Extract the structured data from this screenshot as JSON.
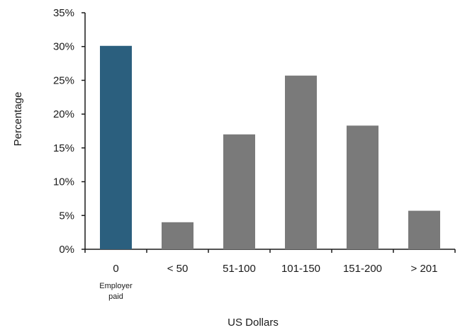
{
  "chart_data": {
    "type": "bar",
    "title": "",
    "xlabel": "US Dollars",
    "ylabel": "Percentage",
    "ylim": [
      0,
      35
    ],
    "yticks": [
      "0%",
      "5%",
      "10%",
      "15%",
      "20%",
      "25%",
      "30%",
      "35%"
    ],
    "ytick_values": [
      0,
      5,
      10,
      15,
      20,
      25,
      30,
      35
    ],
    "categories": [
      "0",
      "< 50",
      "51-100",
      "101-150",
      "151-200",
      "> 201"
    ],
    "category_sublabels": [
      "Employer\npaid",
      "",
      "",
      "",
      "",
      ""
    ],
    "values": [
      30.1,
      4.0,
      17.0,
      25.7,
      18.3,
      5.7
    ],
    "colors": [
      "#2b5f7e",
      "#7a7a7a",
      "#7a7a7a",
      "#7a7a7a",
      "#7a7a7a",
      "#7a7a7a"
    ],
    "grid": false,
    "legend": "none"
  }
}
